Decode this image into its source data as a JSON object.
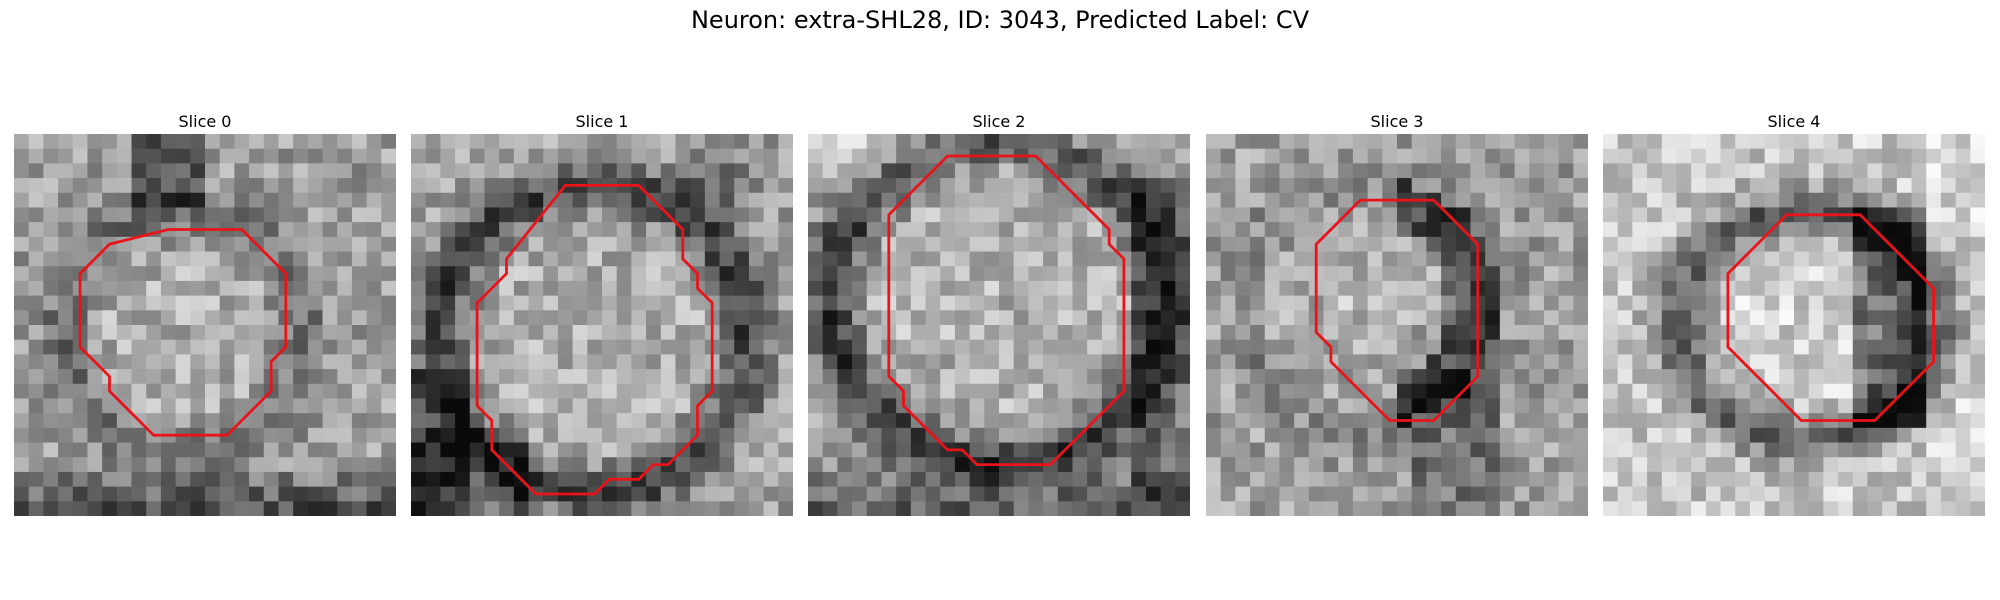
{
  "figure": {
    "title": "Neuron: extra-SHL28, ID: 3043, Predicted Label: CV"
  },
  "contour_color": "#e8141a",
  "panels": [
    {
      "title": "Slice 0",
      "appearance": "grainy gray texture; central disc slightly lighter, dark band along the bottom edge",
      "contour": [
        [
          10.5,
          6.5
        ],
        [
          15.5,
          6.5
        ],
        [
          18.5,
          9.5
        ],
        [
          18.5,
          14.5
        ],
        [
          17.5,
          15.5
        ],
        [
          17.5,
          17.5
        ],
        [
          14.5,
          20.5
        ],
        [
          9.5,
          20.5
        ],
        [
          6.5,
          17.5
        ],
        [
          6.5,
          16.5
        ],
        [
          4.5,
          14.5
        ],
        [
          4.5,
          9.5
        ],
        [
          6.5,
          7.5
        ]
      ]
    },
    {
      "title": "Slice 1",
      "appearance": "lighter textured round cell body with darker ring at the lower left and a dark blob at upper right",
      "contour": [
        [
          10.5,
          3.5
        ],
        [
          15.5,
          3.5
        ],
        [
          18.5,
          6.5
        ],
        [
          18.5,
          8.5
        ],
        [
          19.5,
          9.5
        ],
        [
          19.5,
          10.5
        ],
        [
          20.5,
          11.5
        ],
        [
          20.5,
          17.5
        ],
        [
          19.5,
          18.5
        ],
        [
          19.5,
          20.5
        ],
        [
          17.5,
          22.5
        ],
        [
          16.5,
          22.5
        ],
        [
          15.5,
          23.5
        ],
        [
          13.5,
          23.5
        ],
        [
          12.5,
          24.5
        ],
        [
          8.5,
          24.5
        ],
        [
          5.5,
          21.5
        ],
        [
          5.5,
          19.5
        ],
        [
          4.5,
          18.5
        ],
        [
          4.5,
          11.5
        ],
        [
          6.5,
          9.5
        ],
        [
          6.5,
          8.5
        ]
      ]
    },
    {
      "title": "Slice 2",
      "appearance": "large pale round body bordered by a dark thick rim, darkest at the bottom and right",
      "contour": [
        [
          9.5,
          1.5
        ],
        [
          15.5,
          1.5
        ],
        [
          20.5,
          6.5
        ],
        [
          20.5,
          7.5
        ],
        [
          21.5,
          8.5
        ],
        [
          21.5,
          17.5
        ],
        [
          18.5,
          20.5
        ],
        [
          17.5,
          21.5
        ],
        [
          16.5,
          22.5
        ],
        [
          11.5,
          22.5
        ],
        [
          10.5,
          21.5
        ],
        [
          9.5,
          21.5
        ],
        [
          6.5,
          18.5
        ],
        [
          6.5,
          17.5
        ],
        [
          5.5,
          16.5
        ],
        [
          5.5,
          5.5
        ]
      ]
    },
    {
      "title": "Slice 3",
      "appearance": "mottled gray field with a pale blob at center-left and a dark crescent to its right and below",
      "contour": [
        [
          10.5,
          4.5
        ],
        [
          15.5,
          4.5
        ],
        [
          18.5,
          7.5
        ],
        [
          18.5,
          16.5
        ],
        [
          15.5,
          19.5
        ],
        [
          12.5,
          19.5
        ],
        [
          10.5,
          17.5
        ],
        [
          8.5,
          15.5
        ],
        [
          8.5,
          14.5
        ],
        [
          7.5,
          13.5
        ],
        [
          7.5,
          7.5
        ]
      ]
    },
    {
      "title": "Slice 4",
      "appearance": "light background with a dark elongated ring around a pale interior, very dark region on the right",
      "contour": [
        [
          12.5,
          5.5
        ],
        [
          17.5,
          5.5
        ],
        [
          18.5,
          6.5
        ],
        [
          20.5,
          8.5
        ],
        [
          22.5,
          10.5
        ],
        [
          22.5,
          15.5
        ],
        [
          19.5,
          18.5
        ],
        [
          18.5,
          19.5
        ],
        [
          13.5,
          19.5
        ],
        [
          11.5,
          17.5
        ],
        [
          9.5,
          15.5
        ],
        [
          8.5,
          14.5
        ],
        [
          8.5,
          9.5
        ],
        [
          9.5,
          8.5
        ]
      ]
    }
  ]
}
